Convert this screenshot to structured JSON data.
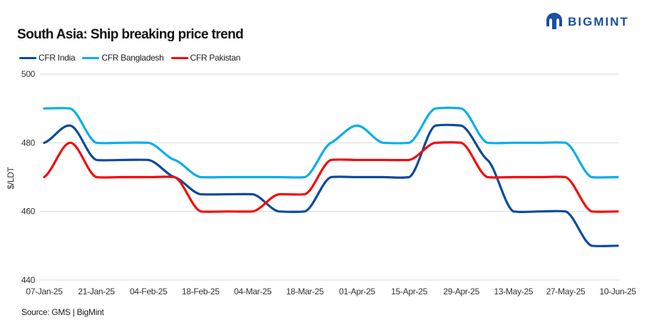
{
  "logo": {
    "text": "BIGMINT",
    "color": "#1b4fa0"
  },
  "source": "Source: GMS | BigMint",
  "chart_data": {
    "type": "line",
    "title": "South Asia: Ship breaking  price trend",
    "ylabel": "$/LDT",
    "xlabel": "",
    "ylim": [
      440,
      500
    ],
    "yticks": [
      440,
      460,
      480,
      500
    ],
    "grid": true,
    "legend": "top-left",
    "smooth": true,
    "x": [
      "07-Jan-25",
      "14-Jan-25",
      "21-Jan-25",
      "28-Jan-25",
      "04-Feb-25",
      "11-Feb-25",
      "18-Feb-25",
      "25-Feb-25",
      "04-Mar-25",
      "11-Mar-25",
      "18-Mar-25",
      "25-Mar-25",
      "01-Apr-25",
      "08-Apr-25",
      "15-Apr-25",
      "22-Apr-25",
      "29-Apr-25",
      "06-May-25",
      "13-May-25",
      "20-May-25",
      "27-May-25",
      "03-Jun-25",
      "10-Jun-25"
    ],
    "xtick_labels": [
      "07-Jan-25",
      "21-Jan-25",
      "04-Feb-25",
      "18-Feb-25",
      "04-Mar-25",
      "18-Mar-25",
      "01-Apr-25",
      "15-Apr-25",
      "29-Apr-25",
      "13-May-25",
      "27-May-25",
      "10-Jun-25"
    ],
    "series": [
      {
        "name": "CFR India",
        "color": "#0d4a9c",
        "values": [
          480,
          485,
          475,
          475,
          475,
          470,
          465,
          465,
          465,
          460,
          460,
          470,
          470,
          470,
          470,
          485,
          485,
          475,
          460,
          460,
          460,
          450,
          450
        ]
      },
      {
        "name": "CFR Bangladesh",
        "color": "#0aaeea",
        "values": [
          490,
          490,
          480,
          480,
          480,
          475,
          470,
          470,
          470,
          470,
          470,
          480,
          485,
          480,
          480,
          490,
          490,
          480,
          480,
          480,
          480,
          470,
          470
        ]
      },
      {
        "name": "CFR Pakistan",
        "color": "#f50a0a",
        "values": [
          470,
          480,
          470,
          470,
          470,
          470,
          460,
          460,
          460,
          465,
          465,
          475,
          475,
          475,
          475,
          480,
          480,
          470,
          470,
          470,
          470,
          460,
          460
        ]
      }
    ]
  }
}
